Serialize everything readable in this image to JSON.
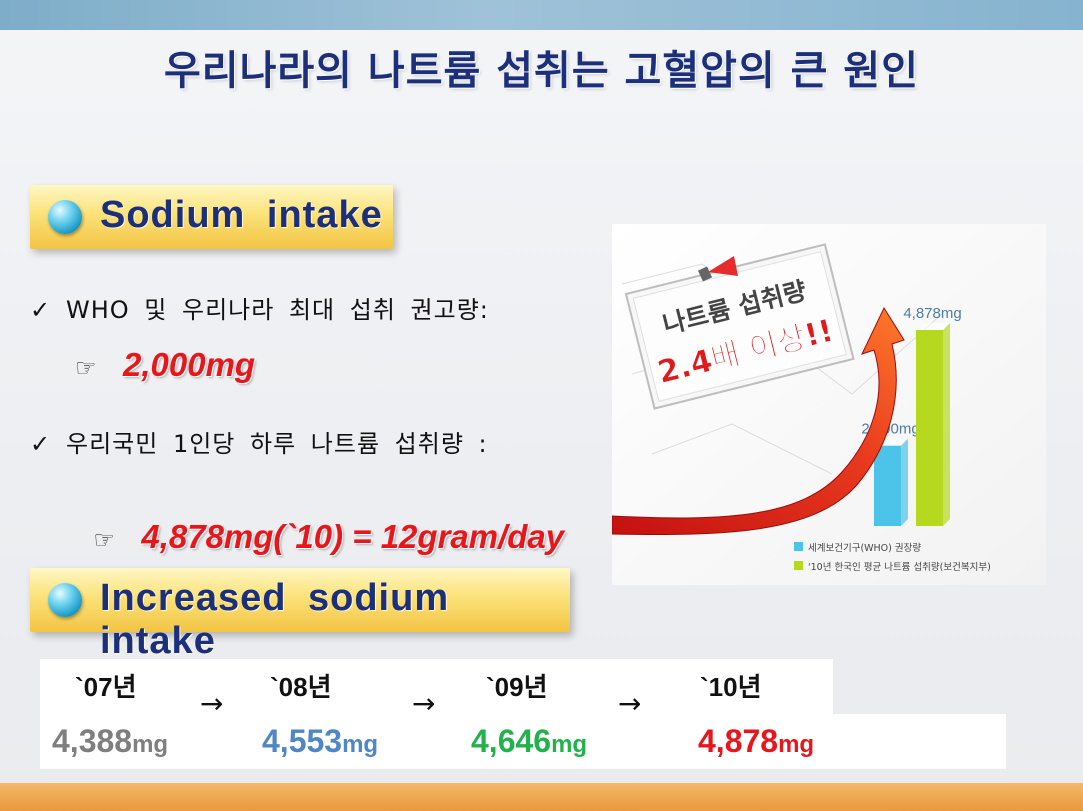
{
  "title": "우리나라의 나트륨 섭취는 고혈압의 큰 원인",
  "section1": {
    "heading": "Sodium intake",
    "check_symbol": "✓",
    "pointer_symbol": "☞",
    "line1": "WHO 및 우리나라 최대 섭취 권고량:",
    "value1": "2,000mg",
    "line2": "우리국민 1인당 하루 나트륨 섭취량 :",
    "value2": "4,878mg(`10) = 12gram/day"
  },
  "section2": {
    "heading": "Increased sodium intake",
    "arrow": "→",
    "years": [
      "`07년",
      "`08년",
      "`09년",
      "`10년"
    ],
    "values": [
      {
        "num": "4,388",
        "unit": "mg",
        "color": "#7f7f7f"
      },
      {
        "num": "4,553",
        "unit": "mg",
        "color": "#4f86c6"
      },
      {
        "num": "4,646",
        "unit": "mg",
        "color": "#22b24c"
      },
      {
        "num": "4,878",
        "unit": "mg",
        "color": "#e8161b"
      }
    ]
  },
  "chart_data": {
    "type": "bar",
    "categories": [
      "세계보건기구(WHO) 권장량",
      "'10년 한국인 평균 나트륨 섭취량(보건복지부)"
    ],
    "values": [
      2000,
      4878
    ],
    "data_labels": [
      "2,000mg",
      "4,878mg"
    ],
    "colors": [
      "#4cc3e8",
      "#b6d81e"
    ],
    "callout_line1": "나트륨 섭취량",
    "callout_line2": "2.4배 이상!!",
    "legend_placement": "bottom-right"
  }
}
